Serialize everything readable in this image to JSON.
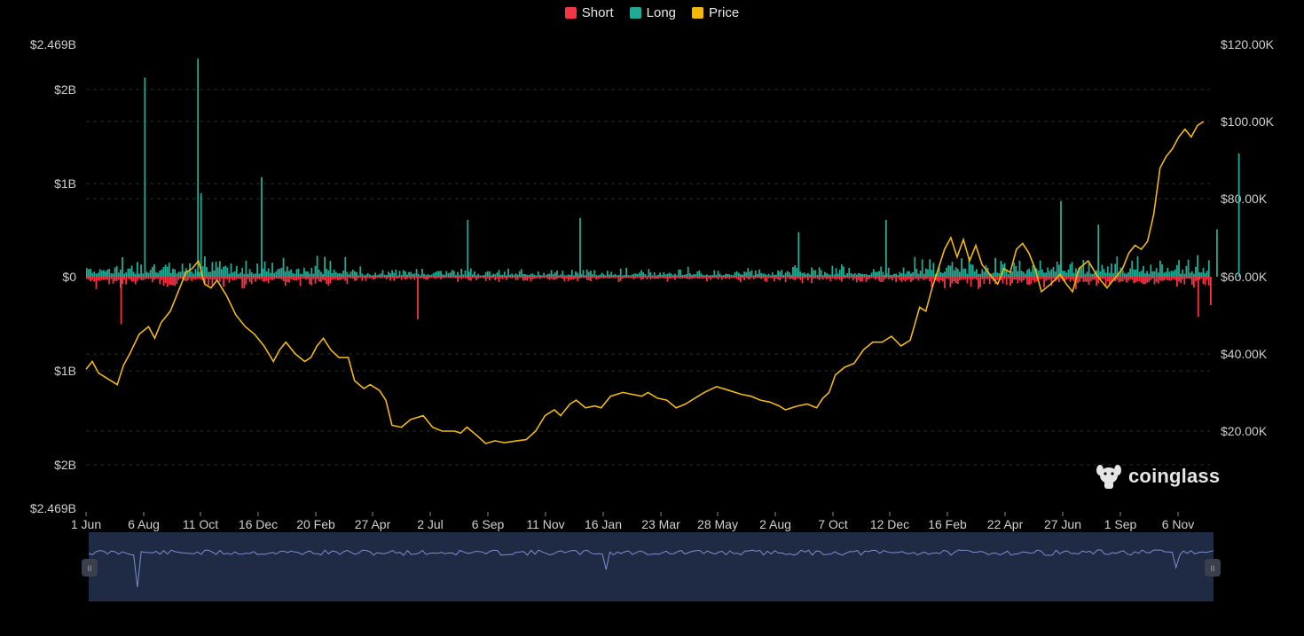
{
  "legend": {
    "items": [
      {
        "label": "Short",
        "color": "#f23645"
      },
      {
        "label": "Long",
        "color": "#22ab94"
      },
      {
        "label": "Price",
        "color": "#f0b90b"
      }
    ]
  },
  "brand": {
    "name": "coinglass",
    "icon": "dog-head-icon"
  },
  "chart_data": {
    "type": "bar",
    "title": "",
    "legend_placement": "top-center",
    "grid": true,
    "x_tick_labels": [
      "1 Jun",
      "6 Aug",
      "11 Oct",
      "16 Dec",
      "20 Feb",
      "27 Apr",
      "2 Jul",
      "6 Sep",
      "11 Nov",
      "16 Jan",
      "23 Mar",
      "28 May",
      "2 Aug",
      "7 Oct",
      "12 Dec",
      "16 Feb",
      "22 Apr",
      "27 Jun",
      "1 Sep",
      "6 Nov"
    ],
    "left_axis": {
      "tick_labels": [
        "$2.469B",
        "$2B",
        "$1B",
        "$0",
        "$1B",
        "$2B",
        "$2.469B"
      ],
      "range_billions": [
        -2.469,
        2.469
      ]
    },
    "right_axis": {
      "tick_labels": [
        "$120.00K",
        "$100.00K",
        "$80.00K",
        "$60.00K",
        "$40.00K",
        "$20.00K"
      ],
      "range_usd": [
        0,
        120000
      ]
    },
    "series": [
      {
        "name": "Long",
        "color": "#22ab94",
        "unit": "billions_usd",
        "spike_days": [
          [
            178,
            2.3
          ],
          [
            93,
            2.1
          ],
          [
            183,
            0.88
          ],
          [
            280,
            1.05
          ],
          [
            610,
            0.6
          ],
          [
            790,
            0.62
          ],
          [
            1140,
            0.47
          ],
          [
            1280,
            0.6
          ],
          [
            1560,
            0.8
          ],
          [
            1620,
            0.55
          ],
          [
            1810,
            0.5
          ],
          [
            1845,
            1.3
          ]
        ]
      },
      {
        "name": "Short",
        "color": "#f23645",
        "unit": "billions_usd",
        "spike_days": [
          [
            55,
            -0.5
          ],
          [
            530,
            -0.45
          ],
          [
            1780,
            -0.42
          ],
          [
            1800,
            -0.3
          ]
        ]
      },
      {
        "name": "Price",
        "color": "#f0b90b",
        "unit": "usd",
        "points": [
          [
            0,
            36000
          ],
          [
            10,
            38000
          ],
          [
            20,
            35000
          ],
          [
            35,
            33500
          ],
          [
            50,
            32000
          ],
          [
            60,
            37000
          ],
          [
            70,
            40000
          ],
          [
            85,
            45000
          ],
          [
            100,
            47000
          ],
          [
            110,
            44000
          ],
          [
            120,
            48000
          ],
          [
            135,
            51000
          ],
          [
            150,
            57000
          ],
          [
            160,
            61000
          ],
          [
            170,
            62000
          ],
          [
            180,
            64000
          ],
          [
            190,
            58000
          ],
          [
            200,
            57000
          ],
          [
            210,
            59000
          ],
          [
            225,
            55000
          ],
          [
            240,
            50000
          ],
          [
            255,
            47000
          ],
          [
            270,
            45000
          ],
          [
            285,
            42000
          ],
          [
            300,
            38000
          ],
          [
            310,
            41000
          ],
          [
            320,
            43000
          ],
          [
            335,
            40000
          ],
          [
            350,
            38000
          ],
          [
            360,
            39000
          ],
          [
            370,
            42000
          ],
          [
            380,
            44000
          ],
          [
            392,
            41000
          ],
          [
            405,
            39000
          ],
          [
            420,
            39000
          ],
          [
            430,
            33000
          ],
          [
            445,
            31000
          ],
          [
            455,
            32000
          ],
          [
            470,
            30500
          ],
          [
            480,
            28000
          ],
          [
            490,
            21500
          ],
          [
            505,
            21000
          ],
          [
            520,
            23000
          ],
          [
            540,
            24000
          ],
          [
            555,
            21000
          ],
          [
            570,
            20000
          ],
          [
            590,
            20000
          ],
          [
            600,
            19500
          ],
          [
            610,
            21000
          ],
          [
            625,
            19000
          ],
          [
            640,
            16800
          ],
          [
            655,
            17500
          ],
          [
            670,
            17000
          ],
          [
            690,
            17500
          ],
          [
            705,
            17800
          ],
          [
            720,
            20000
          ],
          [
            735,
            24000
          ],
          [
            750,
            25500
          ],
          [
            760,
            24000
          ],
          [
            775,
            27000
          ],
          [
            785,
            28000
          ],
          [
            800,
            26000
          ],
          [
            815,
            26500
          ],
          [
            825,
            26000
          ],
          [
            840,
            29000
          ],
          [
            860,
            30000
          ],
          [
            875,
            29500
          ],
          [
            890,
            29000
          ],
          [
            900,
            30000
          ],
          [
            915,
            28500
          ],
          [
            930,
            28000
          ],
          [
            945,
            26000
          ],
          [
            960,
            27000
          ],
          [
            975,
            28500
          ],
          [
            990,
            30000
          ],
          [
            1010,
            31500
          ],
          [
            1030,
            30500
          ],
          [
            1050,
            29500
          ],
          [
            1065,
            29000
          ],
          [
            1080,
            28000
          ],
          [
            1095,
            27500
          ],
          [
            1110,
            26500
          ],
          [
            1120,
            25500
          ],
          [
            1140,
            26500
          ],
          [
            1155,
            27000
          ],
          [
            1170,
            26000
          ],
          [
            1180,
            28500
          ],
          [
            1190,
            30000
          ],
          [
            1200,
            34500
          ],
          [
            1215,
            36500
          ],
          [
            1230,
            37500
          ],
          [
            1245,
            41000
          ],
          [
            1260,
            43000
          ],
          [
            1275,
            43000
          ],
          [
            1290,
            44500
          ],
          [
            1305,
            42000
          ],
          [
            1320,
            43500
          ],
          [
            1335,
            52000
          ],
          [
            1345,
            51000
          ],
          [
            1355,
            57000
          ],
          [
            1365,
            62000
          ],
          [
            1375,
            67000
          ],
          [
            1385,
            70000
          ],
          [
            1395,
            65000
          ],
          [
            1405,
            69500
          ],
          [
            1415,
            64000
          ],
          [
            1425,
            68000
          ],
          [
            1435,
            63000
          ],
          [
            1445,
            61000
          ],
          [
            1460,
            58000
          ],
          [
            1470,
            62000
          ],
          [
            1480,
            61000
          ],
          [
            1490,
            67000
          ],
          [
            1500,
            68500
          ],
          [
            1510,
            66000
          ],
          [
            1520,
            62000
          ],
          [
            1530,
            56000
          ],
          [
            1545,
            58000
          ],
          [
            1560,
            60500
          ],
          [
            1570,
            58000
          ],
          [
            1580,
            56000
          ],
          [
            1590,
            62000
          ],
          [
            1605,
            64000
          ],
          [
            1620,
            60000
          ],
          [
            1635,
            57000
          ],
          [
            1645,
            59000
          ],
          [
            1660,
            62000
          ],
          [
            1670,
            66000
          ],
          [
            1680,
            68000
          ],
          [
            1690,
            67000
          ],
          [
            1700,
            69000
          ],
          [
            1710,
            76000
          ],
          [
            1720,
            88000
          ],
          [
            1730,
            91000
          ],
          [
            1740,
            93000
          ],
          [
            1750,
            96000
          ],
          [
            1760,
            98000
          ],
          [
            1770,
            96000
          ],
          [
            1780,
            99000
          ],
          [
            1790,
            100000
          ]
        ]
      }
    ]
  }
}
